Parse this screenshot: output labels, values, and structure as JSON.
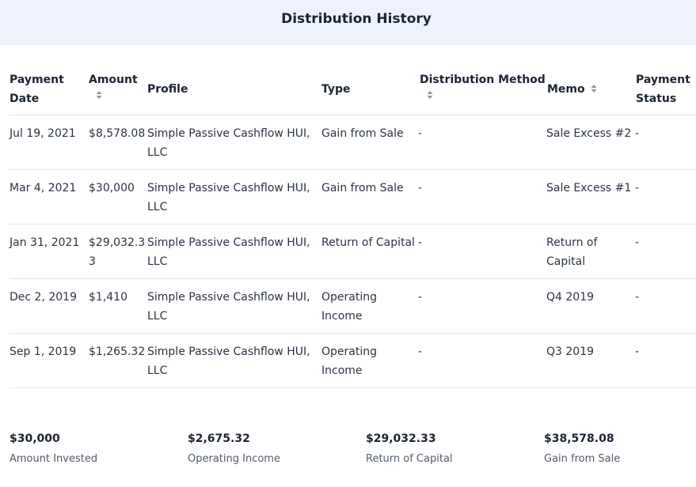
{
  "header": {
    "title": "Distribution History"
  },
  "table": {
    "columns": [
      {
        "key": "date",
        "label_line1": "Payment",
        "label_line2": "Date"
      },
      {
        "key": "amount",
        "label": "Amount"
      },
      {
        "key": "profile",
        "label": "Profile"
      },
      {
        "key": "type",
        "label": "Type"
      },
      {
        "key": "method",
        "label": "Distribution Method"
      },
      {
        "key": "memo",
        "label": "Memo"
      },
      {
        "key": "status",
        "label_line1": "Payment",
        "label_line2": "Status"
      }
    ],
    "rows": [
      {
        "date": "Jul 19, 2021",
        "amount": "$8,578.08",
        "profile_line1": "Simple Passive Cashflow HUI,",
        "profile_line2": "LLC",
        "type_line1": "Gain from Sale",
        "type_line2": "",
        "method": "-",
        "memo_line1": "Sale Excess #2",
        "memo_line2": "",
        "status": "-"
      },
      {
        "date": "Mar 4, 2021",
        "amount": "$30,000",
        "profile_line1": "Simple Passive Cashflow HUI,",
        "profile_line2": "LLC",
        "type_line1": "Gain from Sale",
        "type_line2": "",
        "method": "-",
        "memo_line1": "Sale Excess #1",
        "memo_line2": "",
        "status": "-"
      },
      {
        "date": "Jan 31, 2021",
        "amount": "$29,032.3",
        "amount_line2": "3",
        "profile_line1": "Simple Passive Cashflow HUI,",
        "profile_line2": "LLC",
        "type_line1": "Return of Capital",
        "type_line2": "",
        "method": "-",
        "memo_line1": "Return of",
        "memo_line2": "Capital",
        "status": "-"
      },
      {
        "date": "Dec 2, 2019",
        "amount": "$1,410",
        "profile_line1": "Simple Passive Cashflow HUI,",
        "profile_line2": "LLC",
        "type_line1": "Operating",
        "type_line2": "Income",
        "method": "-",
        "memo_line1": "Q4 2019",
        "memo_line2": "",
        "status": "-"
      },
      {
        "date": "Sep 1, 2019",
        "amount": "$1,265.32",
        "profile_line1": "Simple Passive Cashflow HUI,",
        "profile_line2": "LLC",
        "type_line1": "Operating",
        "type_line2": "Income",
        "method": "-",
        "memo_line1": "Q3 2019",
        "memo_line2": "",
        "status": "-"
      }
    ]
  },
  "summary": [
    {
      "value": "$30,000",
      "label": "Amount Invested"
    },
    {
      "value": "$2,675.32",
      "label": "Operating Income"
    },
    {
      "value": "$29,032.33",
      "label": "Return of Capital"
    },
    {
      "value": "$38,578.08",
      "label": "Gain from Sale"
    }
  ],
  "icons": {
    "sort": "sort-arrows-icon"
  },
  "colors": {
    "header_bg": "#edf2fc",
    "text": "#1c2434",
    "divider": "#e3e6ea"
  }
}
